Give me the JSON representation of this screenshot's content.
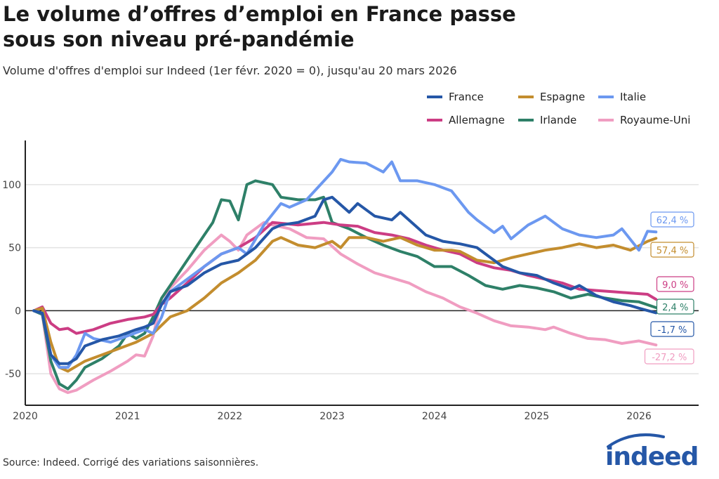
{
  "title_line1": "Le volume d’offres d’emploi en France passe",
  "title_line2": "sous son niveau pré-pandémie",
  "subtitle": "Volume d'offres d'emploi sur Indeed (1er févr. 2020 = 0), jusqu'au 20 mars 2026",
  "source": "Source: Indeed. Corrigé des variations saisonnières.",
  "logo": "indeed",
  "chart_data": {
    "type": "line",
    "xlabel": "",
    "ylabel": "",
    "xlim": [
      "2020-01",
      "2026-08"
    ],
    "ylim": [
      -75,
      135
    ],
    "x_ticks": [
      "2020",
      "2021",
      "2022",
      "2023",
      "2024",
      "2025",
      "2026"
    ],
    "y_ticks": [
      -50,
      0,
      50,
      100
    ],
    "grid": "horizontal",
    "legend": "top-right",
    "series": [
      {
        "name": "Royaume-Uni",
        "color": "#f09dc1",
        "end_label": "-27,2 %",
        "points": [
          [
            "2020-02",
            0
          ],
          [
            "2020-03",
            -3
          ],
          [
            "2020-04",
            -50
          ],
          [
            "2020-05",
            -62
          ],
          [
            "2020-06",
            -65
          ],
          [
            "2020-07",
            -63
          ],
          [
            "2020-09",
            -55
          ],
          [
            "2020-11",
            -48
          ],
          [
            "2021-01",
            -40
          ],
          [
            "2021-02",
            -35
          ],
          [
            "2021-03",
            -36
          ],
          [
            "2021-04",
            -20
          ],
          [
            "2021-05",
            10
          ],
          [
            "2021-06",
            18
          ],
          [
            "2021-08",
            32
          ],
          [
            "2021-10",
            48
          ],
          [
            "2021-12",
            60
          ],
          [
            "2022-01",
            55
          ],
          [
            "2022-02",
            48
          ],
          [
            "2022-03",
            60
          ],
          [
            "2022-05",
            70
          ],
          [
            "2022-06",
            68
          ],
          [
            "2022-08",
            65
          ],
          [
            "2022-10",
            58
          ],
          [
            "2022-12",
            57
          ],
          [
            "2023-02",
            45
          ],
          [
            "2023-04",
            37
          ],
          [
            "2023-06",
            30
          ],
          [
            "2023-08",
            26
          ],
          [
            "2023-10",
            22
          ],
          [
            "2023-12",
            15
          ],
          [
            "2024-02",
            10
          ],
          [
            "2024-04",
            3
          ],
          [
            "2024-06",
            -2
          ],
          [
            "2024-08",
            -8
          ],
          [
            "2024-10",
            -12
          ],
          [
            "2024-12",
            -13
          ],
          [
            "2025-02",
            -15
          ],
          [
            "2025-03",
            -13
          ],
          [
            "2025-05",
            -18
          ],
          [
            "2025-07",
            -22
          ],
          [
            "2025-09",
            -23
          ],
          [
            "2025-11",
            -26
          ],
          [
            "2026-01",
            -24
          ],
          [
            "2026-03",
            -27.2
          ]
        ]
      },
      {
        "name": "Irlande",
        "color": "#2e8068",
        "end_label": "2,4 %",
        "points": [
          [
            "2020-02",
            0
          ],
          [
            "2020-03",
            -3
          ],
          [
            "2020-04",
            -40
          ],
          [
            "2020-05",
            -58
          ],
          [
            "2020-06",
            -62
          ],
          [
            "2020-07",
            -55
          ],
          [
            "2020-08",
            -45
          ],
          [
            "2020-10",
            -38
          ],
          [
            "2020-12",
            -28
          ],
          [
            "2021-01",
            -18
          ],
          [
            "2021-02",
            -22
          ],
          [
            "2021-03",
            -18
          ],
          [
            "2021-04",
            -5
          ],
          [
            "2021-05",
            10
          ],
          [
            "2021-06",
            20
          ],
          [
            "2021-08",
            40
          ],
          [
            "2021-10",
            60
          ],
          [
            "2021-11",
            70
          ],
          [
            "2021-12",
            88
          ],
          [
            "2022-01",
            87
          ],
          [
            "2022-02",
            72
          ],
          [
            "2022-03",
            100
          ],
          [
            "2022-04",
            103
          ],
          [
            "2022-06",
            100
          ],
          [
            "2022-07",
            90
          ],
          [
            "2022-09",
            88
          ],
          [
            "2022-11",
            88
          ],
          [
            "2022-12",
            90
          ],
          [
            "2023-01",
            70
          ],
          [
            "2023-03",
            65
          ],
          [
            "2023-05",
            58
          ],
          [
            "2023-07",
            52
          ],
          [
            "2023-09",
            47
          ],
          [
            "2023-11",
            43
          ],
          [
            "2024-01",
            35
          ],
          [
            "2024-03",
            35
          ],
          [
            "2024-05",
            28
          ],
          [
            "2024-07",
            20
          ],
          [
            "2024-09",
            17
          ],
          [
            "2024-11",
            20
          ],
          [
            "2025-01",
            18
          ],
          [
            "2025-03",
            15
          ],
          [
            "2025-05",
            10
          ],
          [
            "2025-07",
            13
          ],
          [
            "2025-09",
            10
          ],
          [
            "2025-11",
            8
          ],
          [
            "2026-01",
            7
          ],
          [
            "2026-03",
            2.4
          ]
        ]
      },
      {
        "name": "Allemagne",
        "color": "#cc3d84",
        "end_label": "9,0 %",
        "points": [
          [
            "2020-02",
            0
          ],
          [
            "2020-03",
            3
          ],
          [
            "2020-04",
            -10
          ],
          [
            "2020-05",
            -15
          ],
          [
            "2020-06",
            -14
          ],
          [
            "2020-07",
            -18
          ],
          [
            "2020-09",
            -15
          ],
          [
            "2020-11",
            -10
          ],
          [
            "2021-01",
            -7
          ],
          [
            "2021-03",
            -5
          ],
          [
            "2021-04",
            -3
          ],
          [
            "2021-05",
            5
          ],
          [
            "2021-06",
            10
          ],
          [
            "2021-08",
            22
          ],
          [
            "2021-10",
            35
          ],
          [
            "2021-12",
            45
          ],
          [
            "2022-02",
            50
          ],
          [
            "2022-04",
            58
          ],
          [
            "2022-06",
            70
          ],
          [
            "2022-09",
            68
          ],
          [
            "2022-12",
            70
          ],
          [
            "2023-02",
            68
          ],
          [
            "2023-04",
            67
          ],
          [
            "2023-06",
            62
          ],
          [
            "2023-08",
            60
          ],
          [
            "2023-10",
            57
          ],
          [
            "2023-12",
            52
          ],
          [
            "2024-02",
            48
          ],
          [
            "2024-04",
            45
          ],
          [
            "2024-06",
            38
          ],
          [
            "2024-08",
            34
          ],
          [
            "2024-10",
            32
          ],
          [
            "2024-12",
            28
          ],
          [
            "2025-02",
            25
          ],
          [
            "2025-04",
            22
          ],
          [
            "2025-06",
            17
          ],
          [
            "2025-08",
            16
          ],
          [
            "2025-10",
            15
          ],
          [
            "2025-12",
            14
          ],
          [
            "2026-02",
            13
          ],
          [
            "2026-03",
            9.0
          ]
        ]
      },
      {
        "name": "Espagne",
        "color": "#c38d2e",
        "end_label": "57,4 %",
        "points": [
          [
            "2020-02",
            0
          ],
          [
            "2020-03",
            2
          ],
          [
            "2020-04",
            -25
          ],
          [
            "2020-05",
            -45
          ],
          [
            "2020-06",
            -48
          ],
          [
            "2020-08",
            -40
          ],
          [
            "2020-10",
            -35
          ],
          [
            "2020-12",
            -30
          ],
          [
            "2021-02",
            -25
          ],
          [
            "2021-04",
            -18
          ],
          [
            "2021-06",
            -5
          ],
          [
            "2021-08",
            0
          ],
          [
            "2021-10",
            10
          ],
          [
            "2021-12",
            22
          ],
          [
            "2022-02",
            30
          ],
          [
            "2022-04",
            40
          ],
          [
            "2022-06",
            55
          ],
          [
            "2022-07",
            58
          ],
          [
            "2022-09",
            52
          ],
          [
            "2022-11",
            50
          ],
          [
            "2023-01",
            55
          ],
          [
            "2023-02",
            50
          ],
          [
            "2023-03",
            58
          ],
          [
            "2023-05",
            58
          ],
          [
            "2023-07",
            55
          ],
          [
            "2023-09",
            58
          ],
          [
            "2023-11",
            52
          ],
          [
            "2024-01",
            48
          ],
          [
            "2024-03",
            48
          ],
          [
            "2024-04",
            47
          ],
          [
            "2024-06",
            40
          ],
          [
            "2024-08",
            38
          ],
          [
            "2024-10",
            42
          ],
          [
            "2024-12",
            45
          ],
          [
            "2025-02",
            48
          ],
          [
            "2025-04",
            50
          ],
          [
            "2025-06",
            53
          ],
          [
            "2025-08",
            50
          ],
          [
            "2025-10",
            52
          ],
          [
            "2025-12",
            48
          ],
          [
            "2026-02",
            55
          ],
          [
            "2026-03",
            57.4
          ]
        ]
      },
      {
        "name": "Italie",
        "color": "#6c98f0",
        "end_label": "62,4 %",
        "points": [
          [
            "2020-02",
            0
          ],
          [
            "2020-03",
            -2
          ],
          [
            "2020-04",
            -35
          ],
          [
            "2020-05",
            -45
          ],
          [
            "2020-06",
            -45
          ],
          [
            "2020-07",
            -35
          ],
          [
            "2020-08",
            -18
          ],
          [
            "2020-09",
            -22
          ],
          [
            "2020-11",
            -25
          ],
          [
            "2021-01",
            -20
          ],
          [
            "2021-03",
            -15
          ],
          [
            "2021-04",
            -18
          ],
          [
            "2021-05",
            -5
          ],
          [
            "2021-06",
            15
          ],
          [
            "2021-08",
            25
          ],
          [
            "2021-10",
            35
          ],
          [
            "2021-12",
            45
          ],
          [
            "2022-02",
            50
          ],
          [
            "2022-03",
            45
          ],
          [
            "2022-05",
            68
          ],
          [
            "2022-07",
            85
          ],
          [
            "2022-08",
            82
          ],
          [
            "2022-10",
            88
          ],
          [
            "2023-01",
            110
          ],
          [
            "2023-02",
            120
          ],
          [
            "2023-03",
            118
          ],
          [
            "2023-05",
            117
          ],
          [
            "2023-07",
            110
          ],
          [
            "2023-08",
            118
          ],
          [
            "2023-09",
            103
          ],
          [
            "2023-11",
            103
          ],
          [
            "2024-01",
            100
          ],
          [
            "2024-03",
            95
          ],
          [
            "2024-05",
            78
          ],
          [
            "2024-06",
            72
          ],
          [
            "2024-08",
            62
          ],
          [
            "2024-09",
            67
          ],
          [
            "2024-10",
            57
          ],
          [
            "2024-12",
            68
          ],
          [
            "2025-02",
            75
          ],
          [
            "2025-04",
            65
          ],
          [
            "2025-06",
            60
          ],
          [
            "2025-08",
            58
          ],
          [
            "2025-10",
            60
          ],
          [
            "2025-11",
            65
          ],
          [
            "2026-01",
            48
          ],
          [
            "2026-02",
            63
          ],
          [
            "2026-03",
            62.4
          ]
        ]
      },
      {
        "name": "France",
        "color": "#2557a7",
        "end_label": "-1,7 %",
        "points": [
          [
            "2020-02",
            0
          ],
          [
            "2020-03",
            -2
          ],
          [
            "2020-04",
            -35
          ],
          [
            "2020-05",
            -42
          ],
          [
            "2020-06",
            -42
          ],
          [
            "2020-07",
            -38
          ],
          [
            "2020-08",
            -28
          ],
          [
            "2020-10",
            -23
          ],
          [
            "2020-12",
            -20
          ],
          [
            "2021-02",
            -15
          ],
          [
            "2021-03",
            -13
          ],
          [
            "2021-04",
            -10
          ],
          [
            "2021-05",
            5
          ],
          [
            "2021-06",
            15
          ],
          [
            "2021-08",
            20
          ],
          [
            "2021-10",
            30
          ],
          [
            "2021-12",
            37
          ],
          [
            "2022-02",
            40
          ],
          [
            "2022-04",
            50
          ],
          [
            "2022-06",
            65
          ],
          [
            "2022-07",
            68
          ],
          [
            "2022-09",
            70
          ],
          [
            "2022-11",
            75
          ],
          [
            "2022-12",
            88
          ],
          [
            "2023-01",
            90
          ],
          [
            "2023-03",
            78
          ],
          [
            "2023-04",
            85
          ],
          [
            "2023-06",
            75
          ],
          [
            "2023-08",
            72
          ],
          [
            "2023-09",
            78
          ],
          [
            "2023-10",
            72
          ],
          [
            "2023-12",
            60
          ],
          [
            "2024-02",
            55
          ],
          [
            "2024-04",
            53
          ],
          [
            "2024-06",
            50
          ],
          [
            "2024-07",
            45
          ],
          [
            "2024-09",
            35
          ],
          [
            "2024-11",
            30
          ],
          [
            "2025-01",
            28
          ],
          [
            "2025-03",
            22
          ],
          [
            "2025-05",
            17
          ],
          [
            "2025-06",
            20
          ],
          [
            "2025-08",
            12
          ],
          [
            "2025-10",
            7
          ],
          [
            "2025-12",
            4
          ],
          [
            "2026-01",
            2
          ],
          [
            "2026-03",
            -1.7
          ]
        ]
      }
    ],
    "legend_order": [
      "France",
      "Espagne",
      "Italie",
      "Allemagne",
      "Irlande",
      "Royaume-Uni"
    ]
  }
}
